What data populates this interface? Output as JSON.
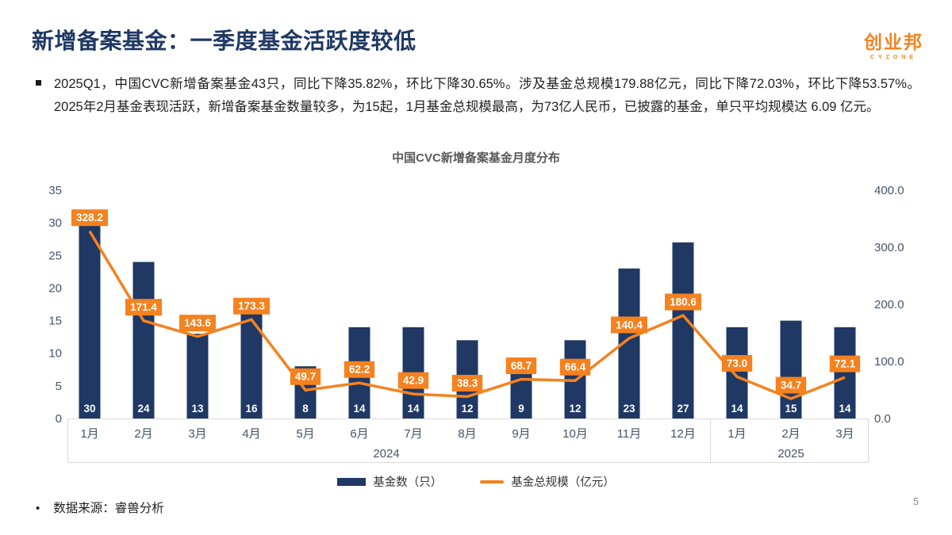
{
  "header": {
    "title": "新增备案基金：一季度基金活跃度较低",
    "logo_text": "创业邦",
    "logo_subtext": "CYZONE"
  },
  "summary": {
    "bullet_text": "2025Q1，中国CVC新增备案基金43只，同比下降35.82%，环比下降30.65%。涉及基金总规模179.88亿元，同比下降72.03%，环比下降53.57%。2025年2月基金表现活跃，新增备案基金数量较多，为15起，1月基金总规模最高，为73亿人民币，已披露的基金，单只平均规模达 6.09 亿元。"
  },
  "chart_data": {
    "type": "bar",
    "title": "中国CVC新增备案基金月度分布",
    "categories": [
      "1月",
      "2月",
      "3月",
      "4月",
      "5月",
      "6月",
      "7月",
      "8月",
      "9月",
      "10月",
      "11月",
      "12月",
      "1月",
      "2月",
      "3月"
    ],
    "category_groups": [
      {
        "label": "2024",
        "span": 12
      },
      {
        "label": "2025",
        "span": 3
      }
    ],
    "series": [
      {
        "name": "基金数（只）",
        "type": "bar",
        "axis": "left",
        "color": "#1F3864",
        "values": [
          30,
          24,
          13,
          16,
          8,
          14,
          14,
          12,
          9,
          12,
          23,
          27,
          14,
          15,
          14
        ]
      },
      {
        "name": "基金总规模（亿元）",
        "type": "line",
        "axis": "right",
        "color": "#F5821F",
        "values": [
          328.2,
          171.4,
          143.6,
          173.3,
          49.7,
          62.2,
          42.9,
          38.3,
          68.7,
          66.4,
          140.4,
          180.6,
          73.0,
          34.7,
          72.1
        ],
        "labels": [
          "328.2",
          "171.4",
          "143.6",
          "173.3",
          "49.7",
          "62.2",
          "42.9",
          "38.3",
          "68.7",
          "66.4",
          "140.4",
          "180.6",
          "73.0",
          "34.7",
          "72.1"
        ]
      }
    ],
    "left_axis": {
      "min": 0,
      "max": 35,
      "step": 5,
      "ticks": [
        "0",
        "5",
        "10",
        "15",
        "20",
        "25",
        "30",
        "35"
      ]
    },
    "right_axis": {
      "min": 0,
      "max": 400,
      "step": 100,
      "ticks": [
        "0.0",
        "100.0",
        "200.0",
        "300.0",
        "400.0"
      ]
    },
    "legend_position": "bottom",
    "grid": false
  },
  "footer": {
    "bullet": "•",
    "source_text": "数据来源：睿兽分析",
    "page_number": "5"
  },
  "colors": {
    "navy": "#1F3864",
    "orange": "#F5821F",
    "axis_text": "#44546A",
    "border": "#D9D9D9"
  }
}
